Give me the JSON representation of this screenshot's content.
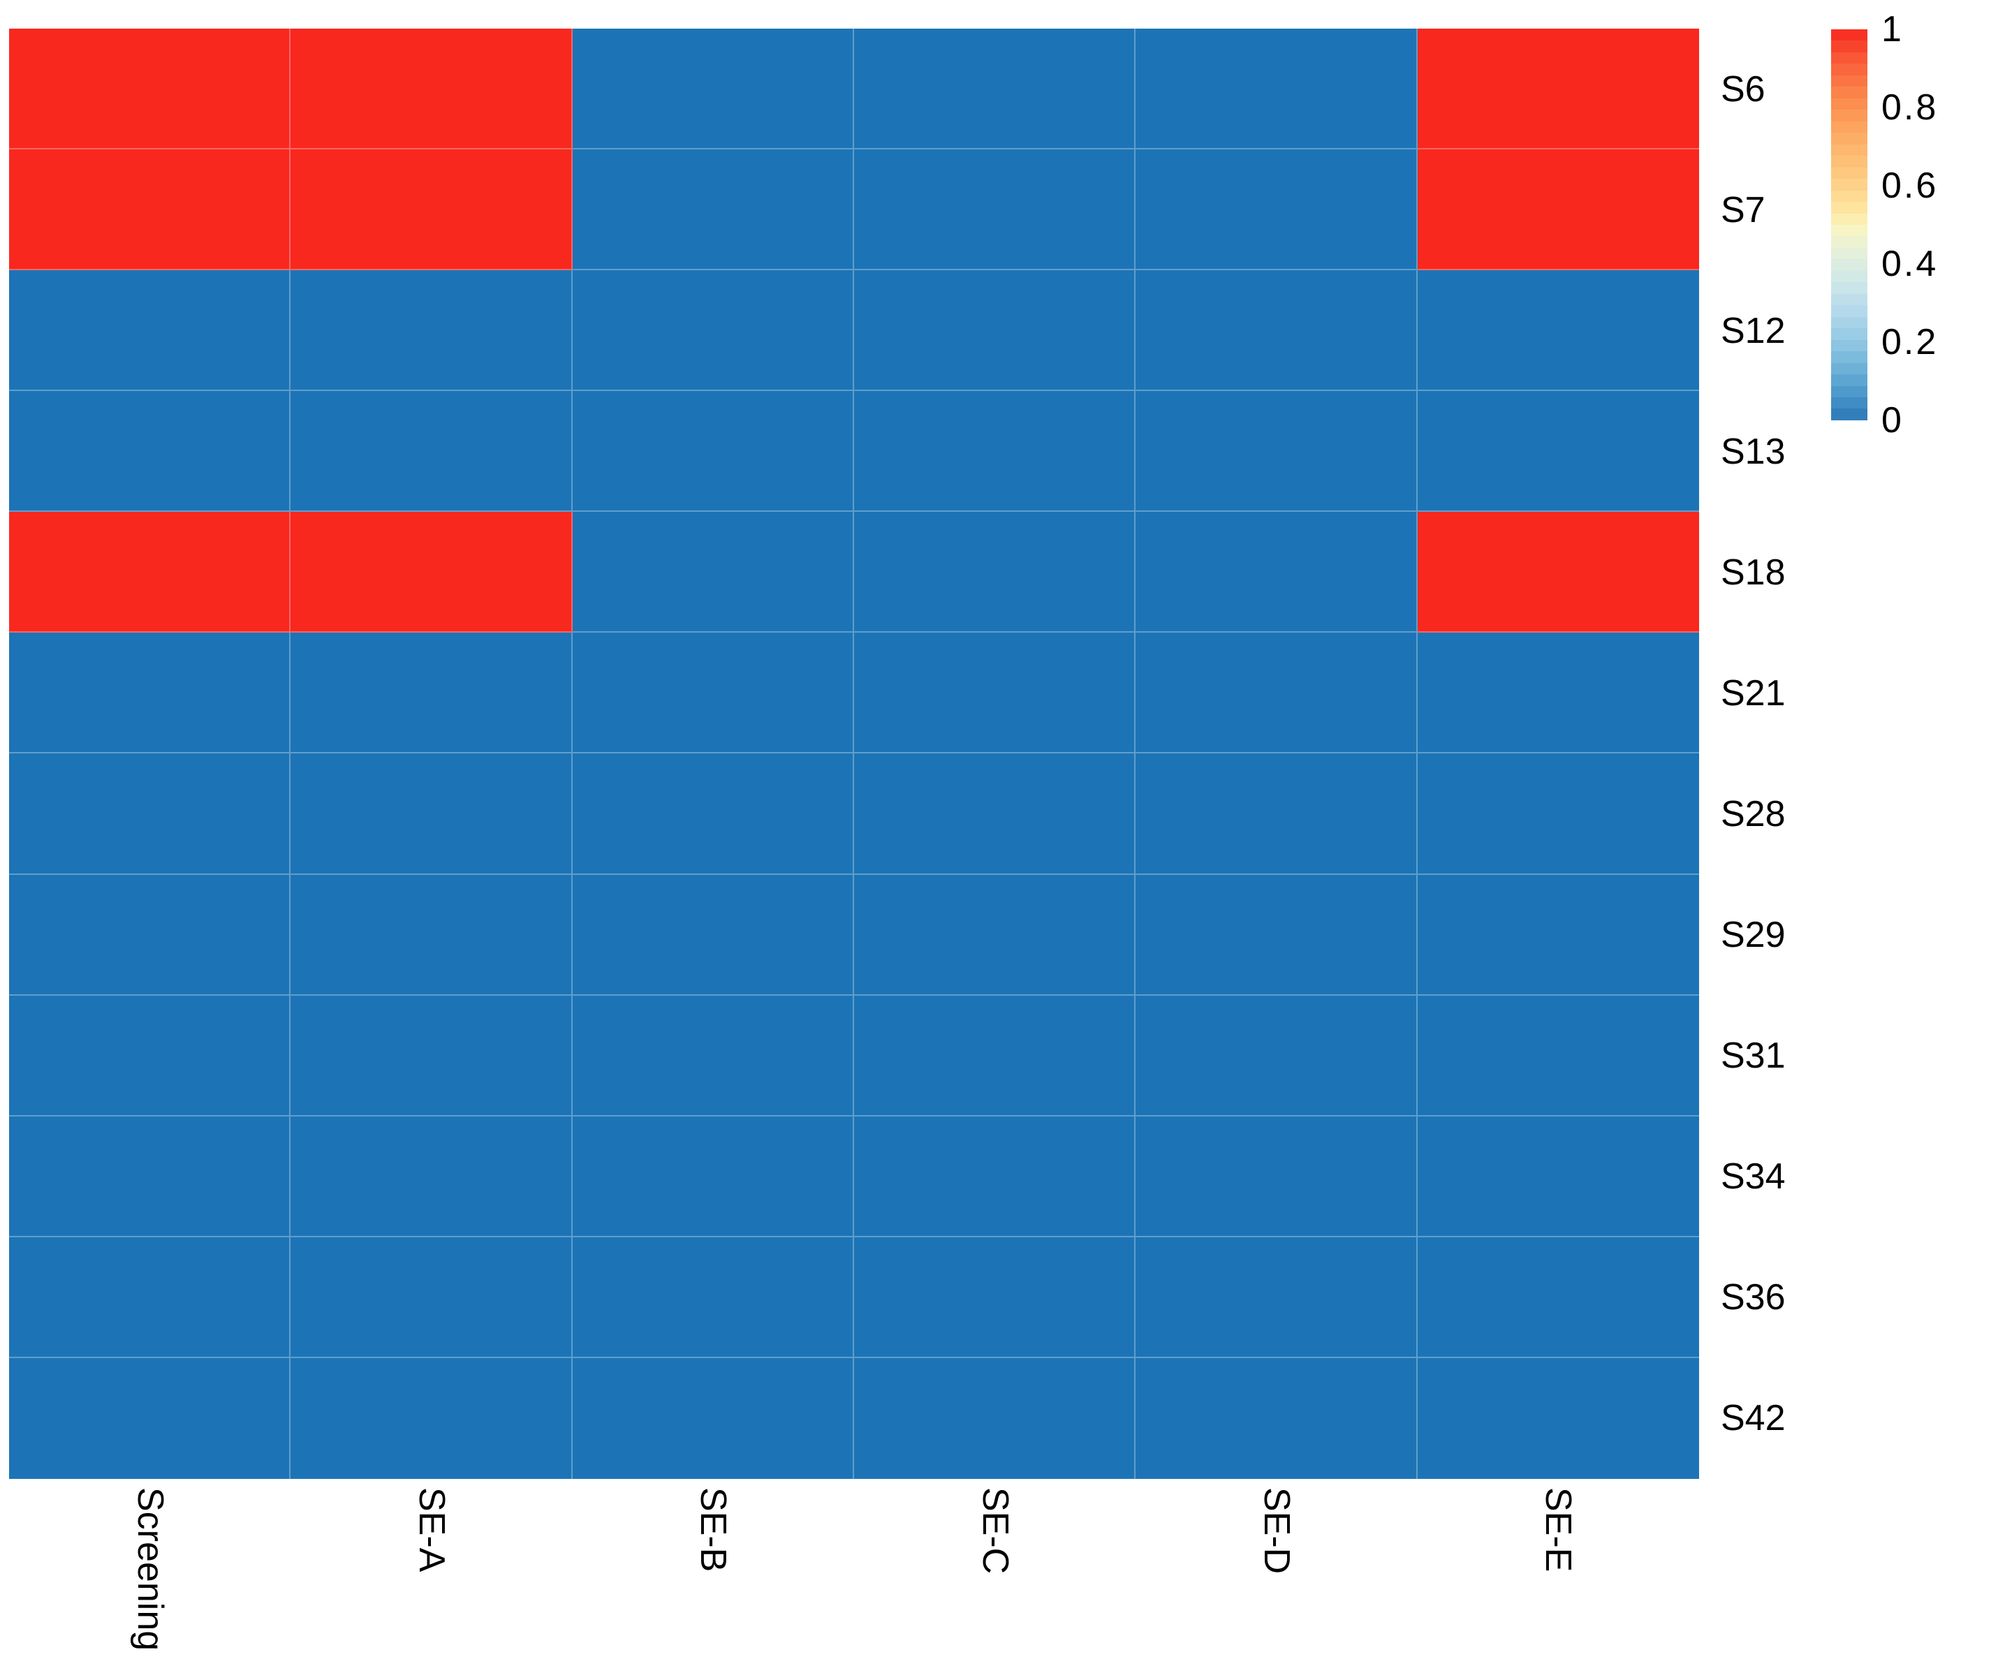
{
  "chart_data": {
    "type": "heatmap",
    "title": "",
    "x_categories": [
      "Screening",
      "SE-A",
      "SE-B",
      "SE-C",
      "SE-D",
      "SE-E"
    ],
    "y_categories": [
      "S6",
      "S7",
      "S12",
      "S13",
      "S18",
      "S21",
      "S28",
      "S29",
      "S31",
      "S34",
      "S36",
      "S42"
    ],
    "values": [
      [
        1,
        1,
        0,
        0,
        0,
        1
      ],
      [
        1,
        1,
        0,
        0,
        0,
        1
      ],
      [
        0,
        0,
        0,
        0,
        0,
        0
      ],
      [
        0,
        0,
        0,
        0,
        0,
        0
      ],
      [
        1,
        1,
        0,
        0,
        0,
        1
      ],
      [
        0,
        0,
        0,
        0,
        0,
        0
      ],
      [
        0,
        0,
        0,
        0,
        0,
        0
      ],
      [
        0,
        0,
        0,
        0,
        0,
        0
      ],
      [
        0,
        0,
        0,
        0,
        0,
        0
      ],
      [
        0,
        0,
        0,
        0,
        0,
        0
      ],
      [
        0,
        0,
        0,
        0,
        0,
        0
      ],
      [
        0,
        0,
        0,
        0,
        0,
        0
      ]
    ],
    "value_range": [
      0,
      1
    ],
    "grid": true,
    "legend": {
      "position": "top-right",
      "tick_labels": [
        "1",
        "0.8",
        "0.6",
        "0.4",
        "0.2",
        "0"
      ],
      "tick_values": [
        1,
        0.8,
        0.6,
        0.4,
        0.2,
        0
      ]
    }
  },
  "colors": {
    "cell_high": "#F8281F",
    "cell_low": "#1C74B6",
    "grid_line": "rgba(255,255,255,0.30)",
    "label_text": "#000000",
    "background": "#FFFFFF"
  },
  "colorbar": {
    "band_count": 34,
    "gradient_stops": [
      [
        0.0,
        "#F8281F"
      ],
      [
        0.08,
        "#F95B38"
      ],
      [
        0.16,
        "#FB8249"
      ],
      [
        0.24,
        "#FDA15C"
      ],
      [
        0.32,
        "#FDBB71"
      ],
      [
        0.4,
        "#FED289"
      ],
      [
        0.47,
        "#FEE8A4"
      ],
      [
        0.5,
        "#FBF4BD"
      ],
      [
        0.53,
        "#F2F4CD"
      ],
      [
        0.58,
        "#E2EFDC"
      ],
      [
        0.65,
        "#CDE7E9"
      ],
      [
        0.72,
        "#B4D9EB"
      ],
      [
        0.79,
        "#96CAE5"
      ],
      [
        0.86,
        "#72B4D9"
      ],
      [
        0.93,
        "#4D99CB"
      ],
      [
        1.0,
        "#2B77B7"
      ]
    ]
  }
}
